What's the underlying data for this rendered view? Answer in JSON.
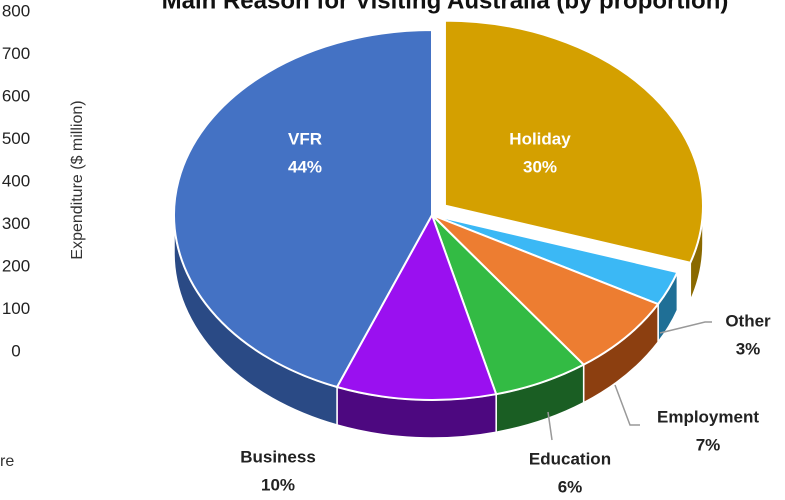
{
  "chart_data": [
    {
      "type": "pie",
      "title": "Main Reason for Visiting Australia (by proportion)",
      "categories": [
        "Holiday",
        "Other",
        "Employment",
        "Education",
        "Business",
        "VFR"
      ],
      "values": [
        30,
        3,
        7,
        6,
        10,
        44
      ],
      "value_labels": [
        "30%",
        "3%",
        "7%",
        "6%",
        "10%",
        "44%"
      ],
      "colors": [
        "#d4a000",
        "#3bb8f5",
        "#ed7d31",
        "#33bb44",
        "#9a10f0",
        "#4472c4"
      ],
      "side_colors": [
        "#8a6900",
        "#1f6f96",
        "#8c3f10",
        "#1a5e23",
        "#4d0880",
        "#2a4a85"
      ],
      "exploded": [
        true,
        false,
        false,
        false,
        false,
        false
      ]
    },
    {
      "type": "axis",
      "ylabel": "Expenditure ($ million)",
      "ylim": [
        0,
        800
      ],
      "yticks": [
        0,
        100,
        200,
        300,
        400,
        500,
        600,
        700,
        800
      ],
      "annotations": [
        "re"
      ]
    }
  ]
}
